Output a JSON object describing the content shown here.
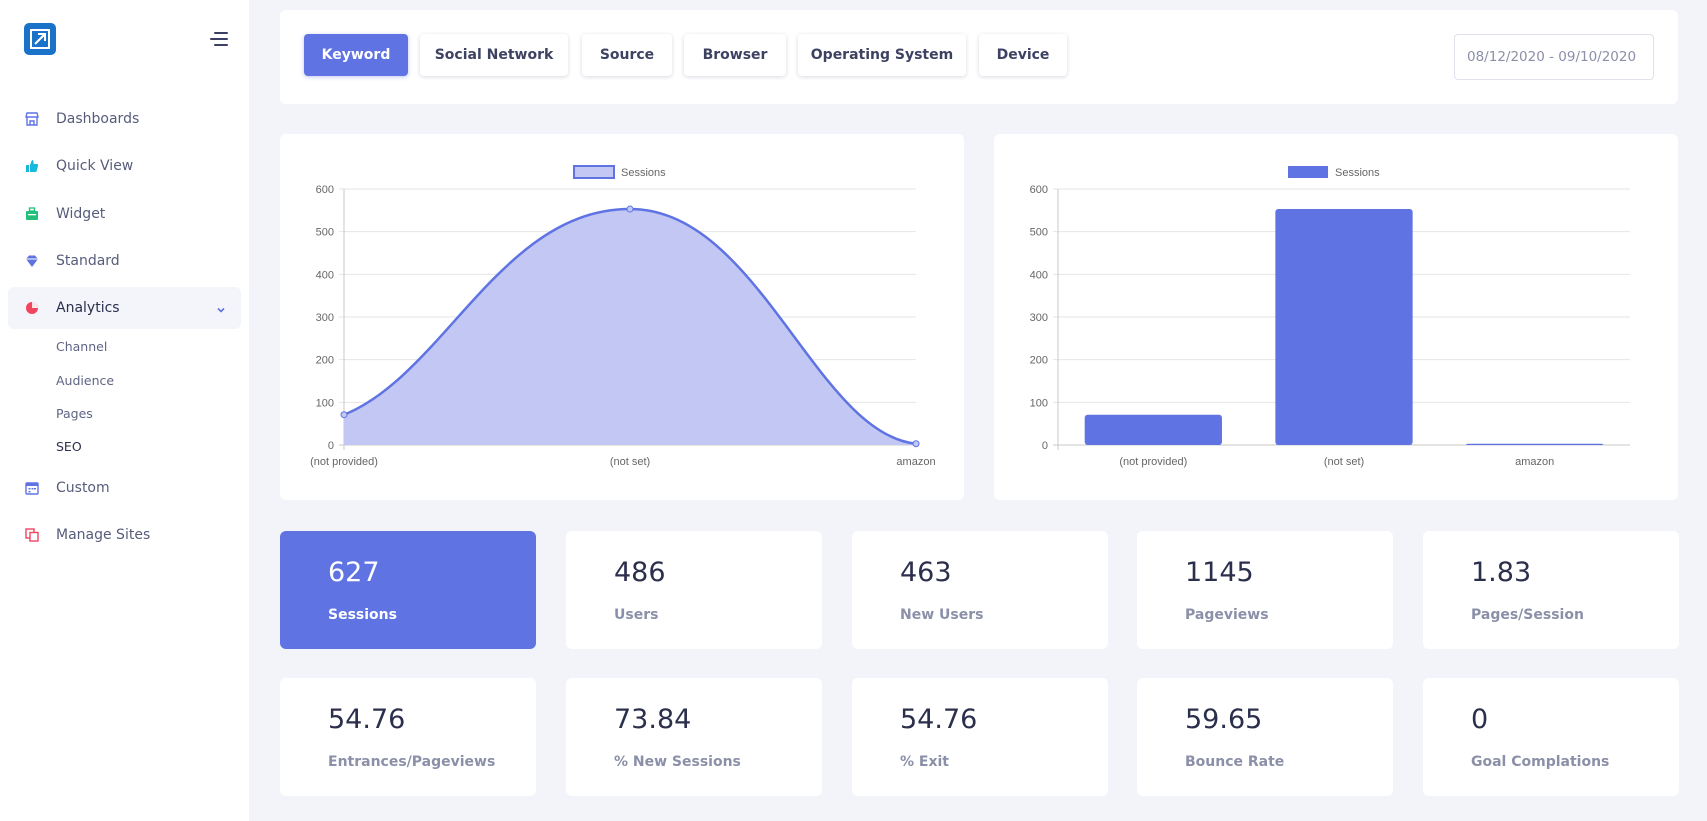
{
  "sidebar": {
    "items": [
      {
        "label": "Dashboards",
        "icon": "store-icon",
        "color": "#5f73e3"
      },
      {
        "label": "Quick View",
        "icon": "thumb-up-icon",
        "color": "#18b9dd"
      },
      {
        "label": "Widget",
        "icon": "briefcase-icon",
        "color": "#22c07a"
      },
      {
        "label": "Standard",
        "icon": "diamond-icon",
        "color": "#5f73e3"
      },
      {
        "label": "Analytics",
        "icon": "pie-chart-icon",
        "color": "#f0455f"
      },
      {
        "label": "Custom",
        "icon": "calendar-icon",
        "color": "#5f73e3"
      },
      {
        "label": "Manage Sites",
        "icon": "copy-icon",
        "color": "#f0455f"
      }
    ],
    "analytics_sub": [
      "Channel",
      "Audience",
      "Pages",
      "SEO"
    ]
  },
  "tabs": [
    "Keyword",
    "Social Network",
    "Source",
    "Browser",
    "Operating System",
    "Device"
  ],
  "date_range": "08/12/2020 - 09/10/2020",
  "chart_data": [
    {
      "type": "area",
      "legend": "Sessions",
      "categories": [
        "(not provided)",
        "(not set)",
        "amazon"
      ],
      "values": [
        71,
        553,
        3
      ],
      "ylim": [
        0,
        600
      ],
      "yticks": [
        0,
        100,
        200,
        300,
        400,
        500,
        600
      ],
      "color": "#5f73e3",
      "fill": "#c2c8f3",
      "grid": true,
      "legend_position": "top"
    },
    {
      "type": "bar",
      "legend": "Sessions",
      "categories": [
        "(not provided)",
        "(not set)",
        "amazon"
      ],
      "values": [
        71,
        553,
        3
      ],
      "ylim": [
        0,
        600
      ],
      "yticks": [
        0,
        100,
        200,
        300,
        400,
        500,
        600
      ],
      "color": "#5f73e3",
      "grid": true,
      "legend_position": "top"
    }
  ],
  "stats_row1": [
    {
      "value": "627",
      "label": "Sessions"
    },
    {
      "value": "486",
      "label": "Users"
    },
    {
      "value": "463",
      "label": "New Users"
    },
    {
      "value": "1145",
      "label": "Pageviews"
    },
    {
      "value": "1.83",
      "label": "Pages/Session"
    }
  ],
  "stats_row2": [
    {
      "value": "54.76",
      "label": "Entrances/Pageviews"
    },
    {
      "value": "73.84",
      "label": "% New Sessions"
    },
    {
      "value": "54.76",
      "label": "% Exit"
    },
    {
      "value": "59.65",
      "label": "Bounce Rate"
    },
    {
      "value": "0",
      "label": "Goal Complations"
    }
  ]
}
